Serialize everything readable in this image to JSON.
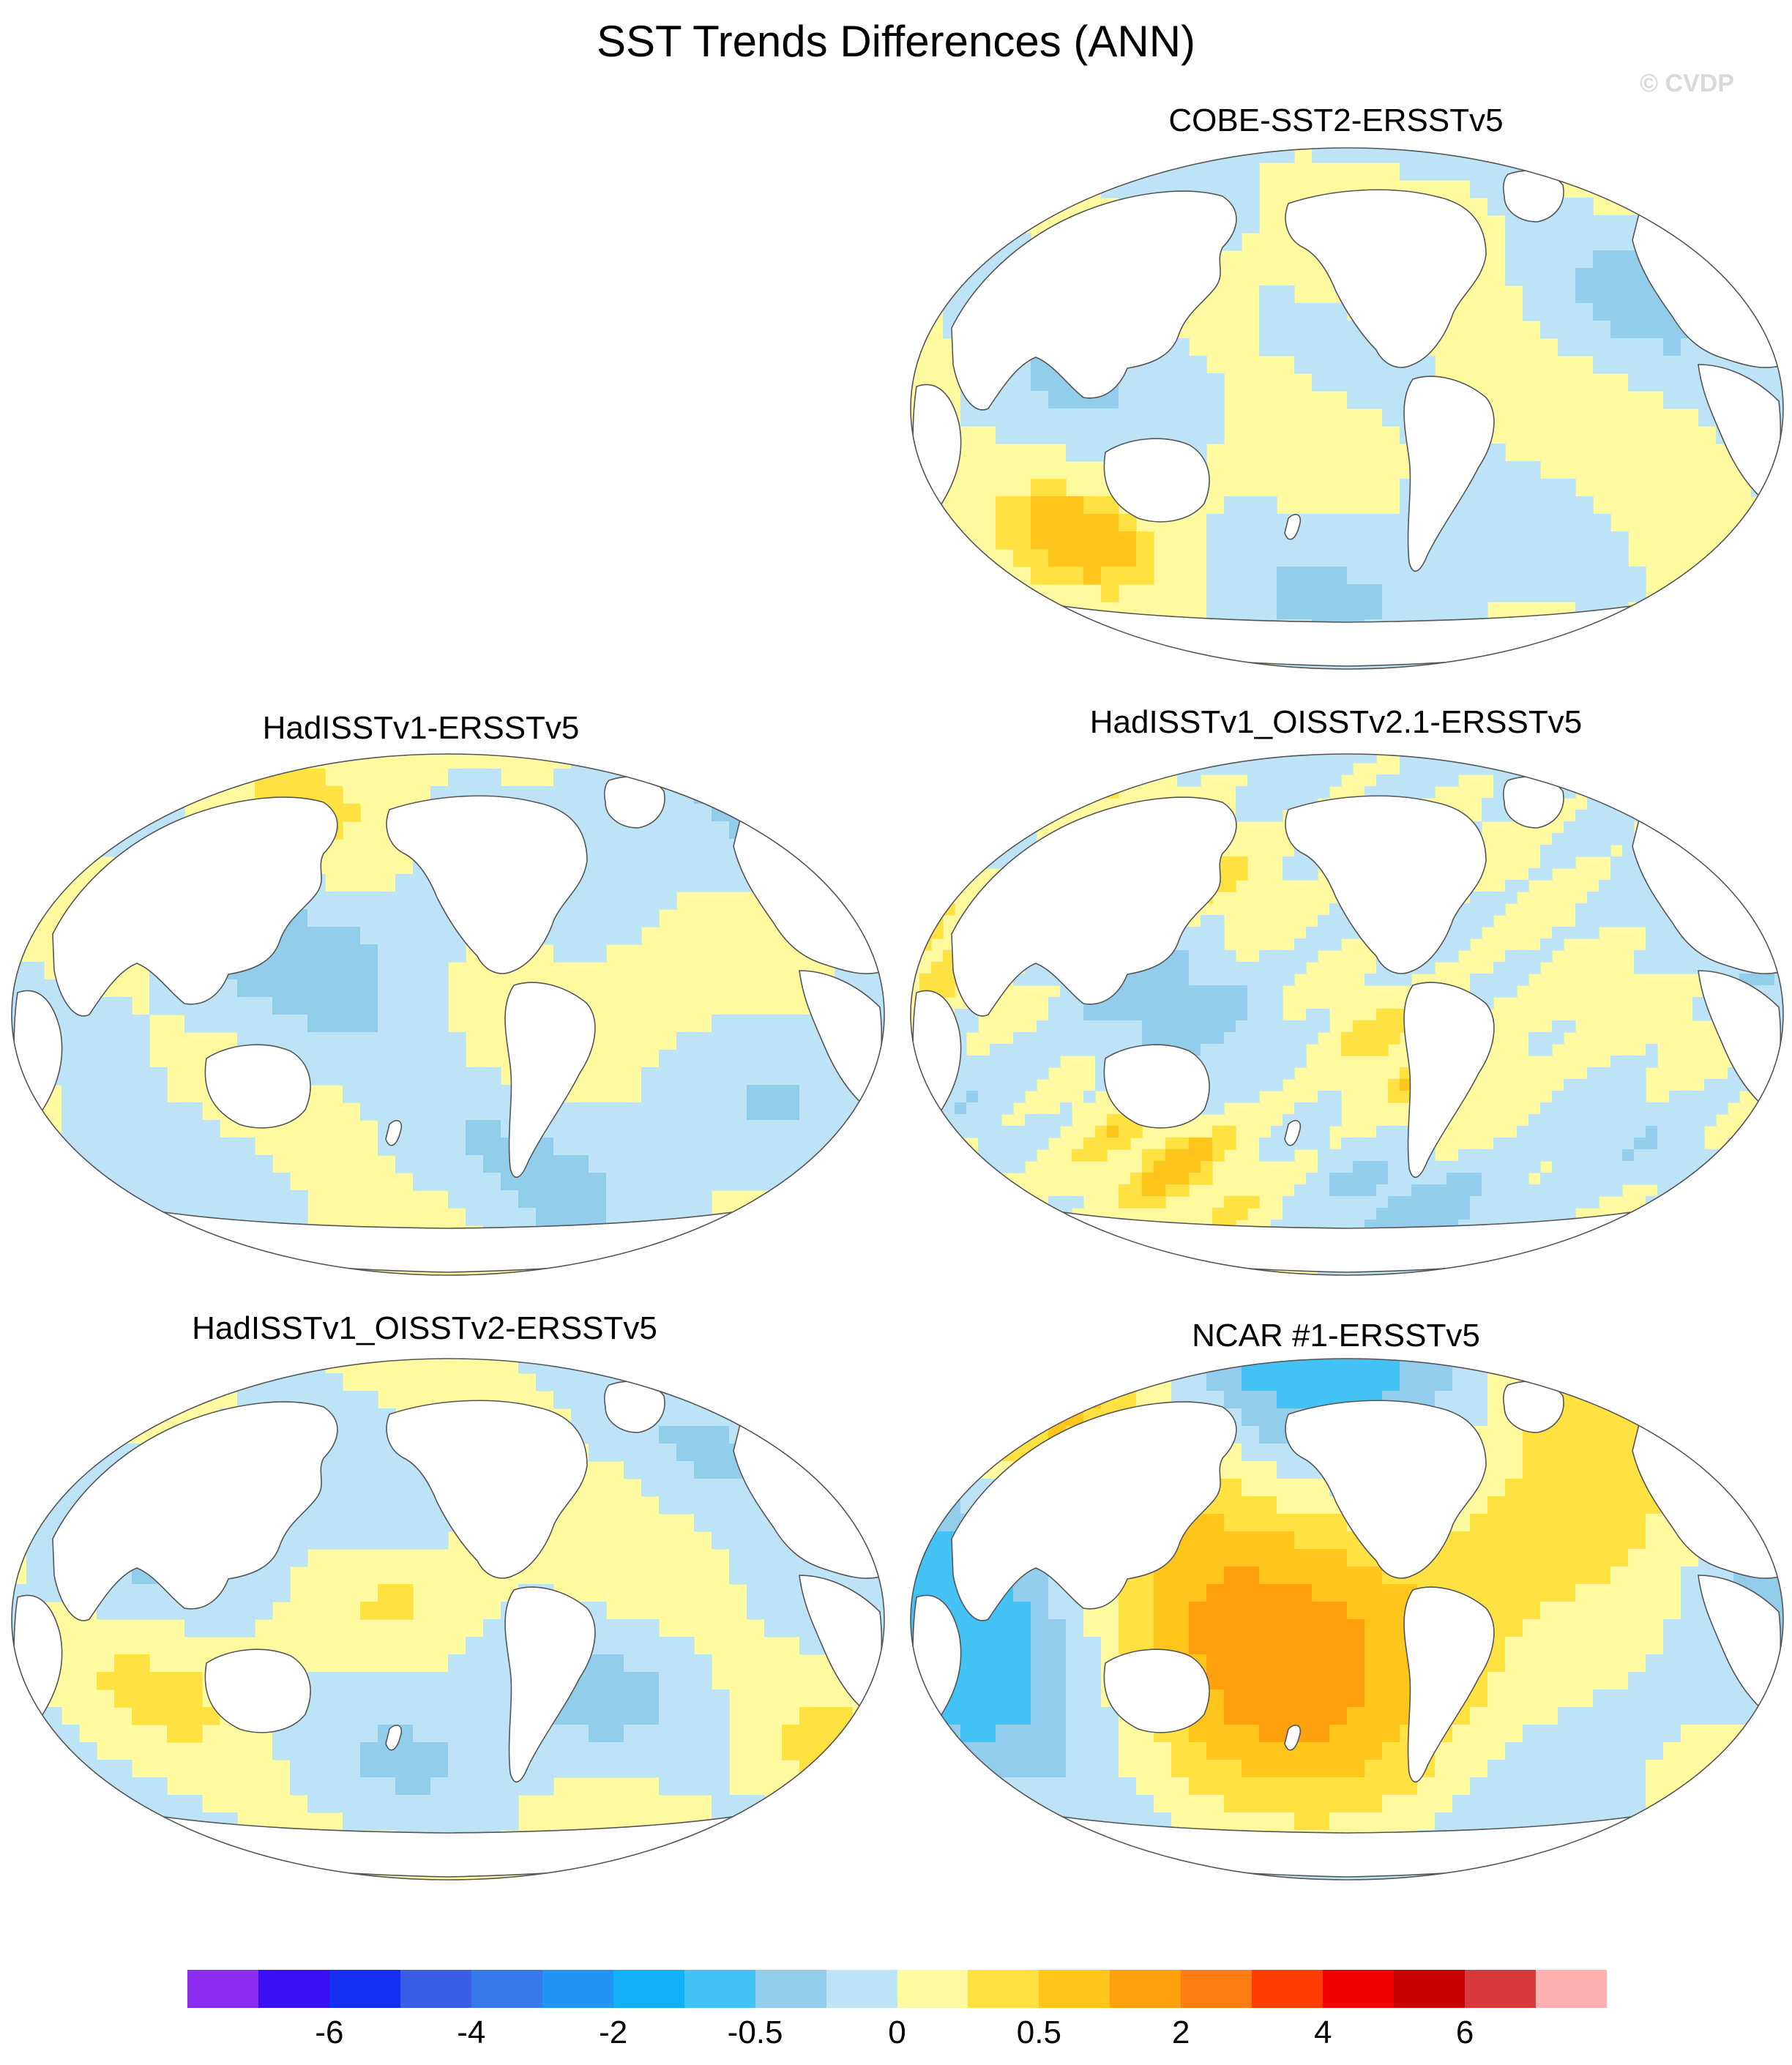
{
  "title": "SST Trends Differences (ANN)",
  "watermark": "© CVDP",
  "panels": [
    {
      "id": "cobe",
      "title": "COBE-SST2-ERSSTv5"
    },
    {
      "id": "hadisst",
      "title": "HadISSTv1-ERSSTv5"
    },
    {
      "id": "hadoi21",
      "title": "HadISSTv1_OISSTv2.1-ERSSTv5"
    },
    {
      "id": "hadoi2",
      "title": "HadISSTv1_OISSTv2-ERSSTv5"
    },
    {
      "id": "ncar",
      "title": "NCAR #1-ERSSTv5"
    }
  ],
  "colorbar": {
    "colors": [
      "#8b2cf0",
      "#3a0ff5",
      "#1530f0",
      "#3a5ee6",
      "#3679ea",
      "#2393f4",
      "#10b1f7",
      "#43c2f5",
      "#93cdec",
      "#bde3f6",
      "#fff9a0",
      "#ffe141",
      "#ffc51b",
      "#ffa00d",
      "#ff7d12",
      "#ff3d04",
      "#f30000",
      "#c80000",
      "#d8393a",
      "#ffb0b0"
    ],
    "labels": [
      "-6",
      "-4",
      "-2",
      "-0.5",
      "0",
      "0.5",
      "2",
      "4",
      "6"
    ]
  }
}
